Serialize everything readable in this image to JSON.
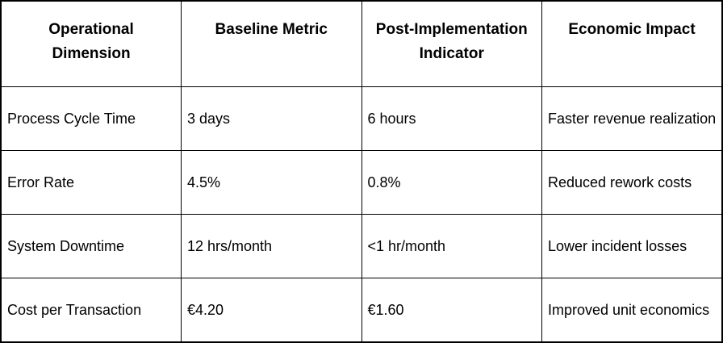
{
  "table": {
    "columns": [
      "Operational Dimension",
      "Baseline Metric",
      "Post-Implementation Indicator",
      "Economic Impact"
    ],
    "rows": [
      [
        "Process Cycle Time",
        "3 days",
        "6 hours",
        "Faster revenue realization"
      ],
      [
        "Error Rate",
        "4.5%",
        "0.8%",
        "Reduced rework costs"
      ],
      [
        "System Downtime",
        "12 hrs/month",
        "<1 hr/month",
        "Lower incident losses"
      ],
      [
        "Cost per Transaction",
        "€4.20",
        "€1.60",
        "Improved unit economics"
      ]
    ],
    "colors": {
      "border": "#000000",
      "text": "#000000",
      "background": "#ffffff"
    }
  }
}
